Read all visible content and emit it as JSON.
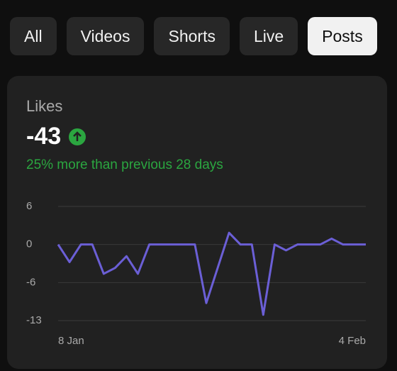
{
  "tabs": [
    "All",
    "Videos",
    "Shorts",
    "Live",
    "Posts"
  ],
  "selected_tab": 4,
  "card": {
    "title": "Likes",
    "value": "-43",
    "change": "25% more than previous 28 days"
  },
  "chart_data": {
    "type": "line",
    "x": [
      "8 Jan",
      null,
      null,
      null,
      null,
      null,
      null,
      null,
      null,
      null,
      null,
      null,
      null,
      null,
      null,
      null,
      null,
      null,
      null,
      null,
      null,
      null,
      null,
      null,
      null,
      null,
      null,
      "4 Feb"
    ],
    "series": [
      {
        "name": "Likes",
        "color": "#6b5fd6",
        "values": [
          0,
          -3,
          0,
          0,
          -5,
          -4,
          -2,
          -5,
          0,
          0,
          0,
          0,
          0,
          -10,
          -4,
          2,
          0,
          0,
          -12,
          0,
          -1,
          0,
          0,
          0,
          1,
          0,
          0,
          0
        ]
      }
    ],
    "ylim": [
      -13,
      6.5
    ],
    "yticks": [
      {
        "value": 6.5,
        "label": "6"
      },
      0,
      {
        "value": -6.5,
        "label": "-6"
      },
      -13
    ],
    "grid": true
  }
}
